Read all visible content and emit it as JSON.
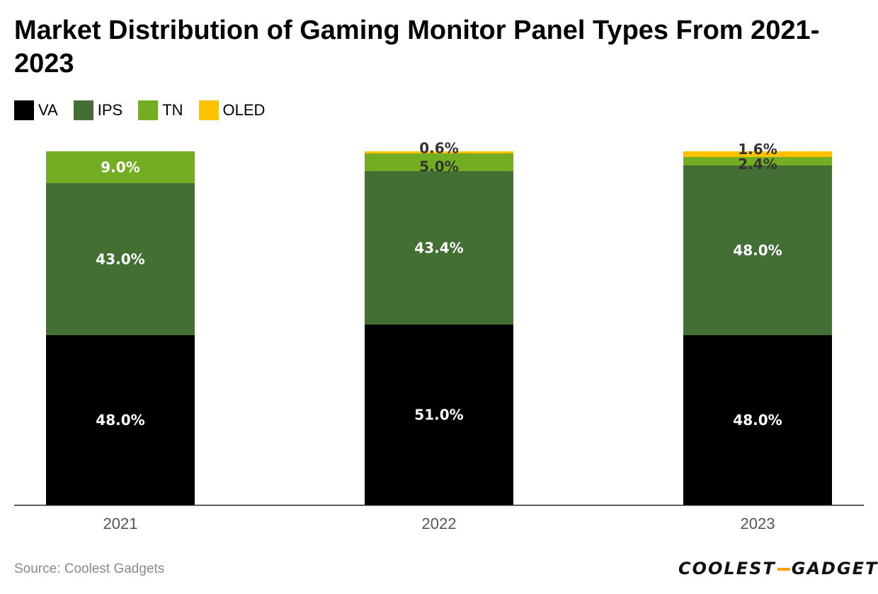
{
  "title": "Market Distribution of Gaming Monitor Panel Types From 2021-2023",
  "source": "Source: Coolest Gadgets",
  "brand": {
    "part1": "COOLEST",
    "part2": "GADGETS",
    "accent_color": "#f5a400"
  },
  "chart_data": {
    "type": "bar",
    "stacked": true,
    "title": "Market Distribution of Gaming Monitor Panel Types From 2021-2023",
    "xlabel": "",
    "ylabel": "",
    "ylim": [
      0,
      100
    ],
    "grid": false,
    "legend_position": "top-left",
    "categories": [
      "2021",
      "2022",
      "2023"
    ],
    "series": [
      {
        "name": "VA",
        "color": "#000000",
        "values": [
          48.0,
          51.0,
          48.0
        ],
        "labels": [
          "48.0%",
          "51.0%",
          "48.0%"
        ]
      },
      {
        "name": "IPS",
        "color": "#436e34",
        "values": [
          43.0,
          43.4,
          48.0
        ],
        "labels": [
          "43.0%",
          "43.4%",
          "48.0%"
        ]
      },
      {
        "name": "TN",
        "color": "#72ad22",
        "values": [
          9.0,
          5.0,
          2.4
        ],
        "labels": [
          "9.0%",
          "5.0%",
          "2.4%"
        ]
      },
      {
        "name": "OLED",
        "color": "#ffc200",
        "values": [
          0,
          0.6,
          1.6
        ],
        "labels": [
          "",
          "0.6%",
          "1.6%"
        ]
      }
    ]
  }
}
